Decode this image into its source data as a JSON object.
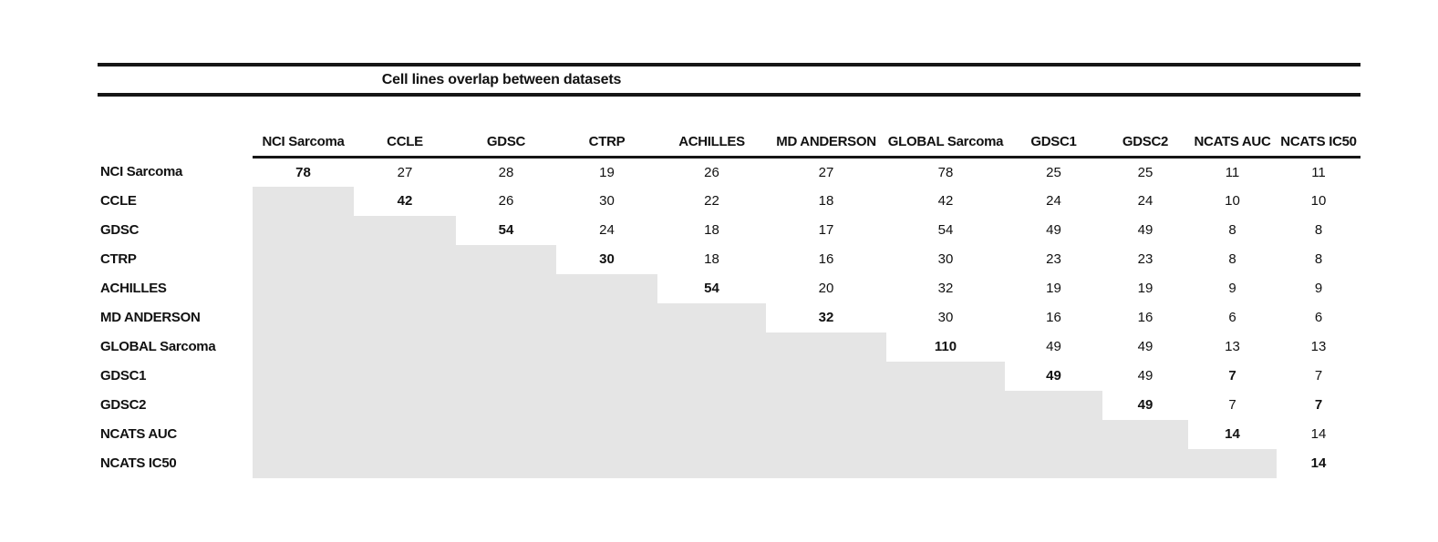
{
  "title": "Cell lines overlap between datasets",
  "colors": {
    "shade": "#e5e5e5",
    "rule": "#161616",
    "text": "#111111",
    "background": "#ffffff"
  },
  "chart_data": {
    "type": "table",
    "title": "Cell lines overlap between datasets",
    "columns": [
      "NCI Sarcoma",
      "CCLE",
      "GDSC",
      "CTRP",
      "ACHILLES",
      "MD ANDERSON",
      "GLOBAL Sarcoma",
      "GDSC1",
      "GDSC2",
      "NCATS AUC",
      "NCATS IC50"
    ],
    "rows": [
      {
        "label": "NCI Sarcoma",
        "values": [
          78,
          27,
          28,
          19,
          26,
          27,
          78,
          25,
          25,
          11,
          11
        ]
      },
      {
        "label": "CCLE",
        "values": [
          null,
          42,
          26,
          30,
          22,
          18,
          42,
          24,
          24,
          10,
          10
        ]
      },
      {
        "label": "GDSC",
        "values": [
          null,
          null,
          54,
          24,
          18,
          17,
          54,
          49,
          49,
          8,
          8
        ]
      },
      {
        "label": "CTRP",
        "values": [
          null,
          null,
          null,
          30,
          18,
          16,
          30,
          23,
          23,
          8,
          8
        ]
      },
      {
        "label": "ACHILLES",
        "values": [
          null,
          null,
          null,
          null,
          54,
          20,
          32,
          19,
          19,
          9,
          9
        ]
      },
      {
        "label": "MD ANDERSON",
        "values": [
          null,
          null,
          null,
          null,
          null,
          32,
          30,
          16,
          16,
          6,
          6
        ]
      },
      {
        "label": "GLOBAL Sarcoma",
        "values": [
          null,
          null,
          null,
          null,
          null,
          null,
          110,
          49,
          49,
          13,
          13
        ]
      },
      {
        "label": "GDSC1",
        "values": [
          null,
          null,
          null,
          null,
          null,
          null,
          null,
          49,
          49,
          7,
          7
        ]
      },
      {
        "label": "GDSC2",
        "values": [
          null,
          null,
          null,
          null,
          null,
          null,
          null,
          null,
          49,
          7,
          7
        ]
      },
      {
        "label": "NCATS AUC",
        "values": [
          null,
          null,
          null,
          null,
          null,
          null,
          null,
          null,
          null,
          14,
          14
        ]
      },
      {
        "label": "NCATS IC50",
        "values": [
          null,
          null,
          null,
          null,
          null,
          null,
          null,
          null,
          null,
          null,
          14
        ]
      }
    ],
    "bold_cells": [
      [
        0,
        0
      ],
      [
        1,
        1
      ],
      [
        2,
        2
      ],
      [
        3,
        3
      ],
      [
        4,
        4
      ],
      [
        5,
        5
      ],
      [
        6,
        6
      ],
      [
        7,
        7
      ],
      [
        8,
        8
      ],
      [
        9,
        9
      ],
      [
        10,
        10
      ],
      [
        7,
        9
      ],
      [
        8,
        10
      ]
    ],
    "shaded_region": "lower-triangle",
    "legend_position": "none",
    "grid": false
  }
}
